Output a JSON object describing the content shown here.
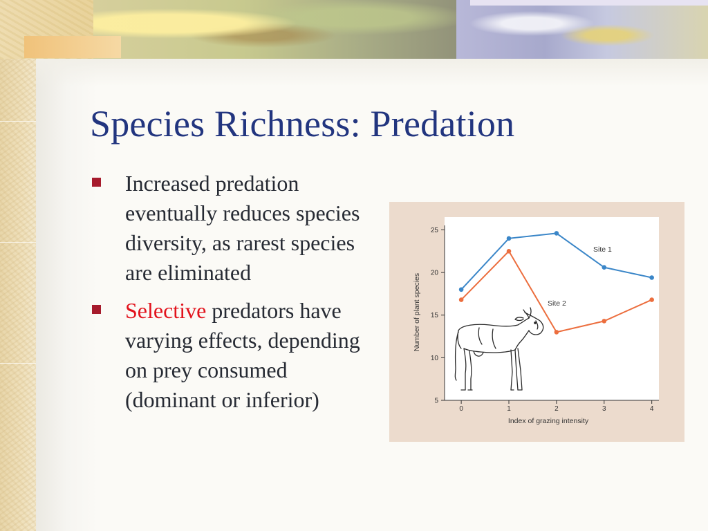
{
  "slide": {
    "title": "Species Richness: Predation",
    "bullets": [
      {
        "text": "Increased predation eventually reduces species diversity, as rarest species are eliminated"
      },
      {
        "highlight": "Selective",
        "text": " predators have varying effects, depending on prey consumed (dominant or inferior)"
      }
    ]
  },
  "colors": {
    "title": "#22357f",
    "bullet_marker": "#a61b2c",
    "highlight": "#e2121c",
    "site1": "#3a86c8",
    "site2": "#ec6e3e"
  },
  "figure": {
    "illustration": "cow-drawing"
  },
  "chart_data": {
    "type": "line",
    "title": "",
    "xlabel": "Index of grazing intensity",
    "ylabel": "Number of plant species",
    "x": [
      0,
      1,
      2,
      3,
      4
    ],
    "xticks": [
      "0",
      "1",
      "2",
      "3",
      "4"
    ],
    "yticks": [
      "5",
      "10",
      "15",
      "20",
      "25"
    ],
    "xlim": [
      -0.35,
      4.15
    ],
    "ylim": [
      5,
      26.5
    ],
    "grid": false,
    "series": [
      {
        "name": "Site 1",
        "values": [
          18,
          24,
          24.6,
          20.6,
          19.4
        ]
      },
      {
        "name": "Site 2",
        "values": [
          16.8,
          22.5,
          13,
          14.3,
          16.8
        ]
      }
    ]
  }
}
